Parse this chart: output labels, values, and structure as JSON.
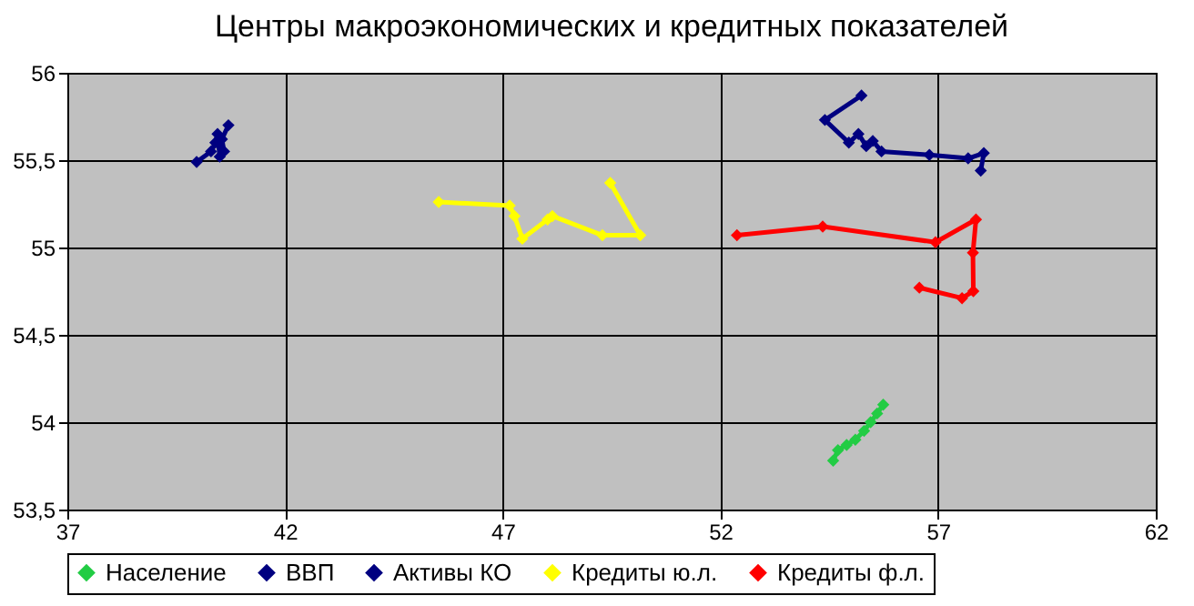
{
  "chart_data": {
    "type": "line",
    "title": "Центры макроэкономических и кредитных показателей",
    "marker": "diamond",
    "grid": true,
    "legend": "bottom",
    "xlim": [
      37,
      62
    ],
    "xticks": [
      37,
      42,
      47,
      52,
      57,
      62
    ],
    "ylim": [
      53.5,
      56
    ],
    "yticks": [
      {
        "value": 53.5,
        "label": "53,5"
      },
      54,
      {
        "value": 54.5,
        "label": "54,5"
      },
      55,
      {
        "value": 55.5,
        "label": "55,5"
      },
      56
    ],
    "series": [
      {
        "name": "Население",
        "color": "#22cc44",
        "x": [
          54.59,
          54.7,
          54.9,
          55.1,
          55.3,
          55.45,
          55.6,
          55.74
        ],
        "values": [
          53.78,
          53.84,
          53.87,
          53.9,
          53.95,
          54.0,
          54.05,
          54.1
        ]
      },
      {
        "name": "ВВП",
        "color": "#000080",
        "x": [
          39.97,
          40.3,
          40.4,
          40.45,
          40.5,
          40.6,
          40.55,
          40.7
        ],
        "values": [
          55.49,
          55.55,
          55.6,
          55.65,
          55.52,
          55.55,
          55.62,
          55.7
        ]
      },
      {
        "name": "Активы КО",
        "color": "#000080",
        "x": [
          55.24,
          54.4,
          54.95,
          55.17,
          55.35,
          55.5,
          55.7,
          56.8,
          57.69,
          58.05,
          57.98
        ],
        "values": [
          55.87,
          55.73,
          55.6,
          55.65,
          55.58,
          55.61,
          55.55,
          55.53,
          55.51,
          55.54,
          55.44
        ]
      },
      {
        "name": "Кредиты ю.л.",
        "color": "#ffff00",
        "x": [
          45.53,
          47.16,
          47.27,
          47.45,
          48.03,
          48.14,
          49.29,
          50.16,
          49.47
        ],
        "values": [
          55.26,
          55.24,
          55.18,
          55.05,
          55.16,
          55.18,
          55.07,
          55.07,
          55.37
        ]
      },
      {
        "name": "Кредиты ф.л.",
        "color": "#ff0000",
        "x": [
          52.38,
          54.35,
          56.94,
          57.87,
          57.8,
          57.81,
          57.55,
          56.57
        ],
        "values": [
          55.07,
          55.12,
          55.03,
          55.16,
          54.97,
          54.75,
          54.71,
          54.77
        ]
      }
    ]
  }
}
